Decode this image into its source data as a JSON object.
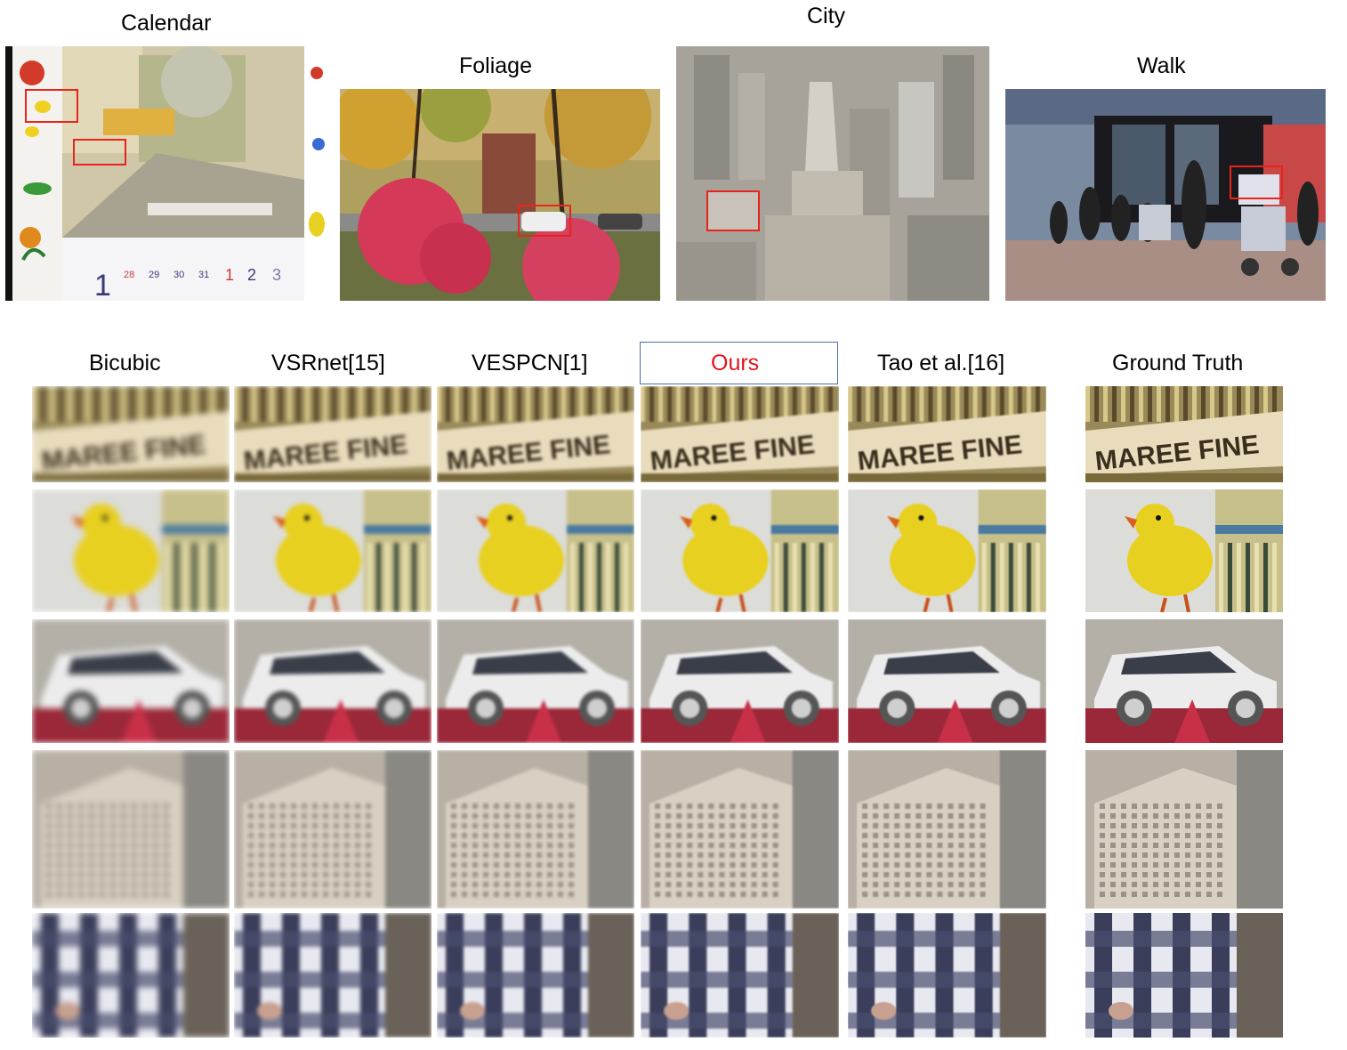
{
  "scenes": [
    {
      "name": "Calendar"
    },
    {
      "name": "Foliage"
    },
    {
      "name": "City"
    },
    {
      "name": "Walk"
    }
  ],
  "methods": [
    {
      "name": "Bicubic"
    },
    {
      "name": "VSRnet[15]"
    },
    {
      "name": "VESPCN[1]"
    },
    {
      "name": "Ours",
      "highlight": true
    },
    {
      "name": "Tao et al.[16]"
    },
    {
      "name": "Ground Truth"
    }
  ],
  "crop_text": "MAREE FINE",
  "calendar_digits": [
    "1",
    "28",
    "29",
    "30",
    "31",
    "1",
    "2",
    "3"
  ],
  "colors": {
    "roi": "#e8241c",
    "ours_label": "#e0141e",
    "ours_box": "#4a6fa5"
  }
}
